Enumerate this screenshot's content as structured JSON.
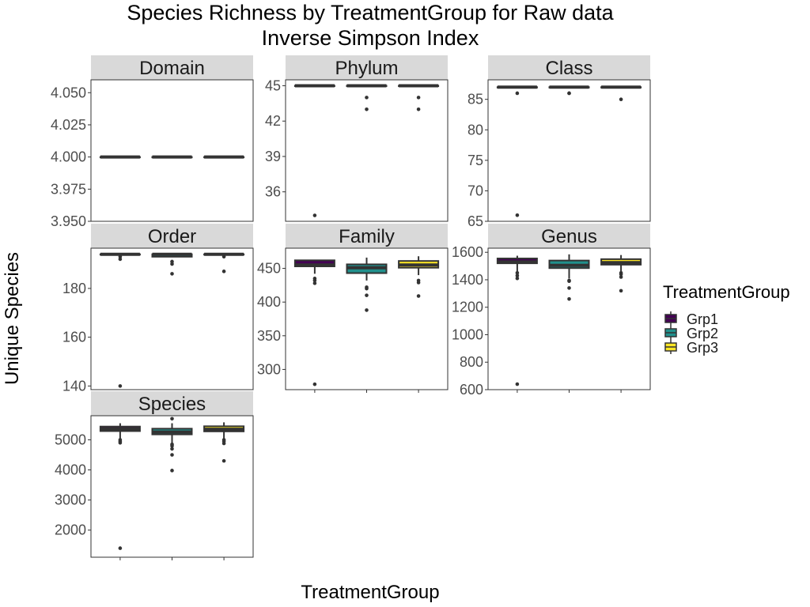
{
  "chart_data": {
    "type": "box",
    "title": "Species Richness by TreatmentGroup for Raw data",
    "subtitle": "Inverse Simpson Index",
    "xlabel": "TreatmentGroup",
    "ylabel": "Unique Species",
    "legend": {
      "title": "TreatmentGroup",
      "position": "right",
      "items": [
        {
          "name": "Grp1",
          "color": "#440154"
        },
        {
          "name": "Grp2",
          "color": "#21908C"
        },
        {
          "name": "Grp3",
          "color": "#FDE725"
        }
      ]
    },
    "colors": {
      "panel_strip": "#d9d9d9",
      "box_line": "#333333",
      "outlier": "#333333",
      "axis_text": "#4d4d4d"
    },
    "grid": false,
    "panels": [
      {
        "name": "Domain",
        "ylim": [
          3.95,
          4.06
        ],
        "yticks": [
          3.95,
          3.975,
          4.0,
          4.025,
          4.05
        ],
        "ytick_labels": [
          "3.950",
          "3.975",
          "4.000",
          "4.025",
          "4.050"
        ],
        "boxes": [
          {
            "group": "Grp1",
            "min": 4,
            "q1": 4,
            "median": 4,
            "q3": 4,
            "max": 4,
            "outliers": []
          },
          {
            "group": "Grp2",
            "min": 4,
            "q1": 4,
            "median": 4,
            "q3": 4,
            "max": 4,
            "outliers": []
          },
          {
            "group": "Grp3",
            "min": 4,
            "q1": 4,
            "median": 4,
            "q3": 4,
            "max": 4,
            "outliers": []
          }
        ]
      },
      {
        "name": "Phylum",
        "ylim": [
          33.5,
          45.5
        ],
        "yticks": [
          36,
          39,
          42,
          45
        ],
        "ytick_labels": [
          "36",
          "39",
          "42",
          "45"
        ],
        "boxes": [
          {
            "group": "Grp1",
            "min": 45,
            "q1": 45,
            "median": 45,
            "q3": 45,
            "max": 45,
            "outliers": [
              34
            ]
          },
          {
            "group": "Grp2",
            "min": 45,
            "q1": 45,
            "median": 45,
            "q3": 45,
            "max": 45,
            "outliers": [
              44,
              43
            ]
          },
          {
            "group": "Grp3",
            "min": 45,
            "q1": 45,
            "median": 45,
            "q3": 45,
            "max": 45,
            "outliers": [
              44,
              43
            ]
          }
        ]
      },
      {
        "name": "Class",
        "ylim": [
          65,
          88.2
        ],
        "yticks": [
          65,
          70,
          75,
          80,
          85
        ],
        "ytick_labels": [
          "65",
          "70",
          "75",
          "80",
          "85"
        ],
        "boxes": [
          {
            "group": "Grp1",
            "min": 87,
            "q1": 87,
            "median": 87,
            "q3": 87,
            "max": 87,
            "outliers": [
              86,
              66
            ]
          },
          {
            "group": "Grp2",
            "min": 87,
            "q1": 87,
            "median": 87,
            "q3": 87,
            "max": 87,
            "outliers": [
              86,
              86
            ]
          },
          {
            "group": "Grp3",
            "min": 87,
            "q1": 87,
            "median": 87,
            "q3": 87,
            "max": 87,
            "outliers": [
              85
            ]
          }
        ]
      },
      {
        "name": "Order",
        "ylim": [
          138.5,
          196.5
        ],
        "yticks": [
          140,
          160,
          180
        ],
        "ytick_labels": [
          "140",
          "160",
          "180"
        ],
        "boxes": [
          {
            "group": "Grp1",
            "min": 194,
            "q1": 194,
            "median": 194,
            "q3": 194,
            "max": 194,
            "outliers": [
              193,
              192,
              140
            ]
          },
          {
            "group": "Grp2",
            "min": 193,
            "q1": 193,
            "median": 194,
            "q3": 194,
            "max": 194,
            "outliers": [
              191,
              190,
              186
            ]
          },
          {
            "group": "Grp3",
            "min": 194,
            "q1": 194,
            "median": 194,
            "q3": 194,
            "max": 194,
            "outliers": [
              193,
              187
            ]
          }
        ]
      },
      {
        "name": "Family",
        "ylim": [
          270,
          480
        ],
        "yticks": [
          300,
          350,
          400,
          450
        ],
        "ytick_labels": [
          "300",
          "350",
          "400",
          "450"
        ],
        "boxes": [
          {
            "group": "Grp1",
            "min": 442,
            "q1": 453,
            "median": 455,
            "q3": 462,
            "max": 463,
            "outliers": [
              435,
              432,
              428,
              278
            ]
          },
          {
            "group": "Grp2",
            "min": 432,
            "q1": 443,
            "median": 451,
            "q3": 456,
            "max": 466,
            "outliers": [
              422,
              420,
              410,
              388
            ]
          },
          {
            "group": "Grp3",
            "min": 440,
            "q1": 451,
            "median": 455,
            "q3": 461,
            "max": 468,
            "outliers": [
              432,
              429,
              409
            ]
          }
        ]
      },
      {
        "name": "Genus",
        "ylim": [
          600,
          1630
        ],
        "yticks": [
          600,
          800,
          1000,
          1200,
          1400,
          1600
        ],
        "ytick_labels": [
          "600",
          "800",
          "1000",
          "1200",
          "1400",
          "1600"
        ],
        "boxes": [
          {
            "group": "Grp1",
            "min": 1460,
            "q1": 1520,
            "median": 1530,
            "q3": 1555,
            "max": 1575,
            "outliers": [
              1450,
              1430,
              1410,
              640
            ]
          },
          {
            "group": "Grp2",
            "min": 1410,
            "q1": 1485,
            "median": 1505,
            "q3": 1540,
            "max": 1585,
            "outliers": [
              1395,
              1390,
              1340,
              1260
            ]
          },
          {
            "group": "Grp3",
            "min": 1460,
            "q1": 1510,
            "median": 1525,
            "q3": 1550,
            "max": 1580,
            "outliers": [
              1450,
              1440,
              1420,
              1320
            ]
          }
        ]
      },
      {
        "name": "Species",
        "ylim": [
          1100,
          5800
        ],
        "yticks": [
          2000,
          3000,
          4000,
          5000
        ],
        "ytick_labels": [
          "2000",
          "3000",
          "4000",
          "5000"
        ],
        "boxes": [
          {
            "group": "Grp1",
            "min": 5050,
            "q1": 5290,
            "median": 5360,
            "q3": 5440,
            "max": 5550,
            "outliers": [
              5000,
              4950,
              4900,
              1400
            ]
          },
          {
            "group": "Grp2",
            "min": 4900,
            "q1": 5180,
            "median": 5260,
            "q3": 5370,
            "max": 5550,
            "outliers": [
              5700,
              4850,
              4800,
              4700,
              4500,
              3980
            ]
          },
          {
            "group": "Grp3",
            "min": 5050,
            "q1": 5280,
            "median": 5350,
            "q3": 5450,
            "max": 5580,
            "outliers": [
              5000,
              4950,
              4880,
              4300
            ]
          }
        ]
      }
    ]
  }
}
